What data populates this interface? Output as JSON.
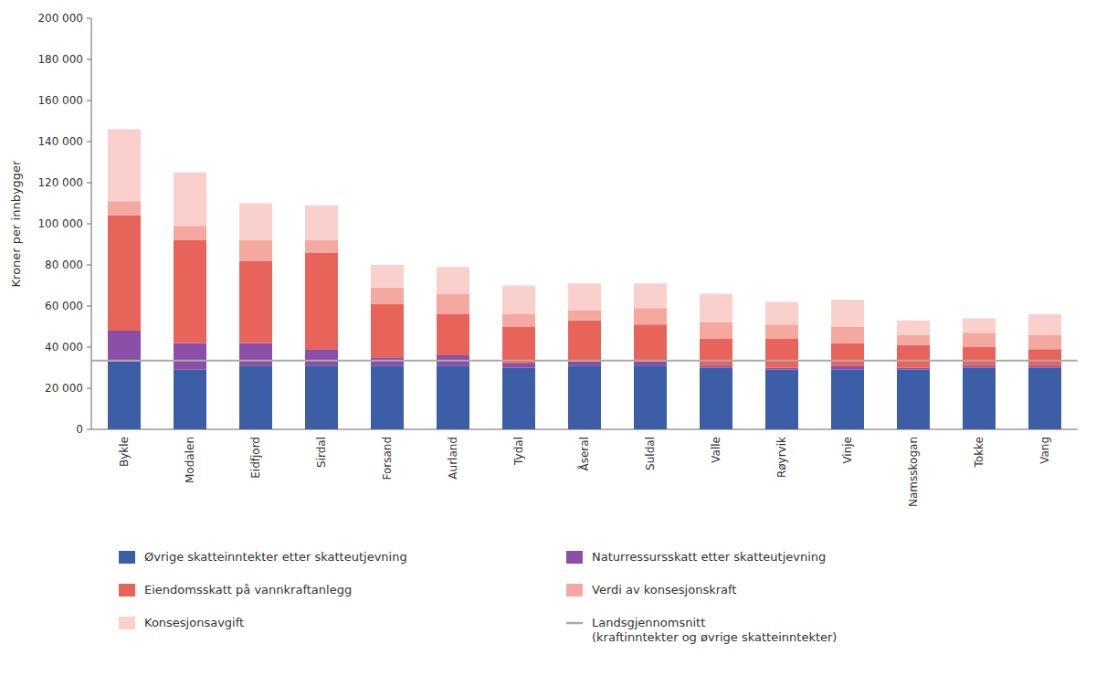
{
  "chart_data": {
    "type": "bar",
    "stacked": true,
    "grid": false,
    "legend": "bottom",
    "ylabel": "Kroner per innbygger",
    "categories": [
      "Bykle",
      "Modalen",
      "Eidfjord",
      "Sirdal",
      "Forsand",
      "Aurland",
      "Tydal",
      "Åseral",
      "Suldal",
      "Valle",
      "Røyrvik",
      "Vinje",
      "Namsskogan",
      "Tokke",
      "Vang"
    ],
    "series": [
      {
        "name": "Øvrige skatteinntekter etter skatteutjevning",
        "color": "#3b5ea6",
        "values": [
          33000,
          29000,
          31000,
          31000,
          31000,
          31000,
          30000,
          31000,
          31000,
          30000,
          29000,
          29000,
          29000,
          30000,
          30000
        ]
      },
      {
        "name": "Naturressursskatt etter skatteutjevning",
        "color": "#8b4fa8",
        "values": [
          15000,
          13000,
          11000,
          8000,
          4000,
          5000,
          2000,
          2000,
          2000,
          1000,
          1000,
          2000,
          1000,
          1000,
          1000
        ]
      },
      {
        "name": "Eiendomsskatt på vannkraftanlegg",
        "color": "#e8635a",
        "values": [
          56000,
          50000,
          40000,
          47000,
          26000,
          20000,
          18000,
          20000,
          18000,
          13000,
          14000,
          11000,
          11000,
          9000,
          8000
        ]
      },
      {
        "name": "Verdi av konsesjonskraft",
        "color": "#f5a8a0",
        "values": [
          7000,
          7000,
          10000,
          6000,
          8000,
          10000,
          6000,
          5000,
          8000,
          8000,
          7000,
          8000,
          5000,
          7000,
          7000
        ]
      },
      {
        "name": "Konsesjonsavgift",
        "color": "#f9d0cc",
        "values": [
          35000,
          26000,
          18000,
          17000,
          11000,
          13000,
          14000,
          13000,
          12000,
          14000,
          11000,
          13000,
          7000,
          7000,
          10000
        ]
      }
    ],
    "reference_lines": [
      {
        "name": "Landsgjennomsnitt\n(kraftinntekter og øvrige skatteinntekter)",
        "value": 33500,
        "color": "#aaaaaa"
      }
    ],
    "ylim": [
      0,
      200000
    ],
    "yticks": [
      0,
      {
        "value": 20000,
        "label": "20 000"
      },
      {
        "value": 40000,
        "label": "40 000"
      },
      {
        "value": 60000,
        "label": "60 000"
      },
      {
        "value": 80000,
        "label": "80 000"
      },
      {
        "value": 100000,
        "label": "100 000"
      },
      {
        "value": 120000,
        "label": "120 000"
      },
      {
        "value": 140000,
        "label": "140 000"
      },
      {
        "value": 160000,
        "label": "160 000"
      },
      {
        "value": 180000,
        "label": "180 000"
      },
      {
        "value": 200000,
        "label": "200 000"
      }
    ]
  }
}
